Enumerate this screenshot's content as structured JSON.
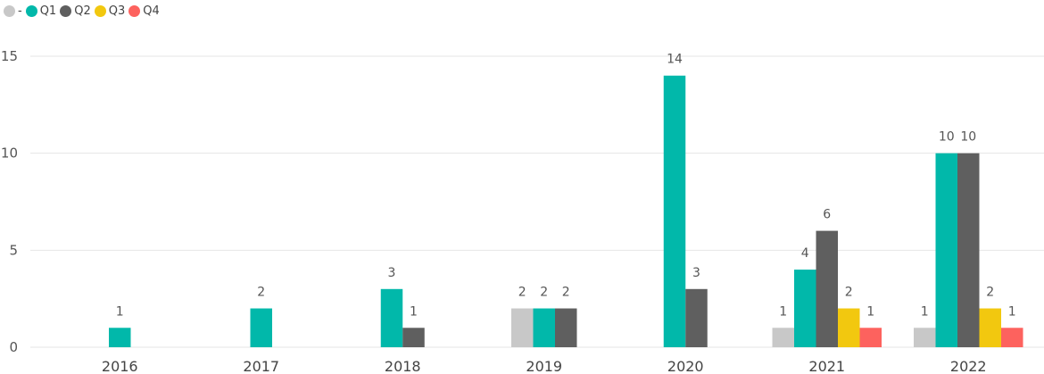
{
  "chart_data": {
    "type": "bar",
    "categories": [
      "2016",
      "2017",
      "2018",
      "2019",
      "2020",
      "2021",
      "2022"
    ],
    "series": [
      {
        "name": "-",
        "color": "#c8c8c8",
        "values": [
          null,
          null,
          null,
          2,
          null,
          1,
          1
        ]
      },
      {
        "name": "Q1",
        "color": "#01b8aa",
        "values": [
          1,
          2,
          3,
          2,
          14,
          4,
          10
        ]
      },
      {
        "name": "Q2",
        "color": "#5f5f5f",
        "values": [
          null,
          null,
          1,
          2,
          3,
          6,
          10
        ]
      },
      {
        "name": "Q3",
        "color": "#f2c80f",
        "values": [
          null,
          null,
          null,
          null,
          null,
          2,
          2
        ]
      },
      {
        "name": "Q4",
        "color": "#fd625e",
        "values": [
          null,
          null,
          null,
          null,
          null,
          1,
          1
        ]
      }
    ],
    "yticks": [
      0,
      5,
      10,
      15
    ],
    "ylim": [
      0,
      15
    ],
    "grid": true,
    "legend": "top-left",
    "data_labels": true
  }
}
